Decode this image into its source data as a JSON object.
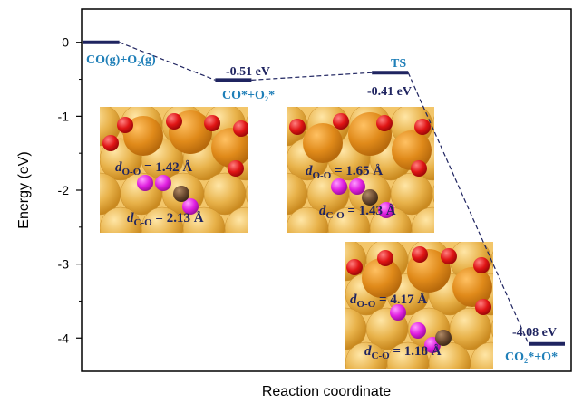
{
  "chart_data": {
    "type": "line",
    "title": "",
    "xlabel": "Reaction coordinate",
    "ylabel": "Energy (eV)",
    "ylim": [
      -4.45,
      0.45
    ],
    "yticks": [
      0,
      -1,
      -2,
      -3,
      -4
    ],
    "ytick_labels": [
      "0",
      "-1",
      "-2",
      "-3",
      "-4"
    ],
    "xlim": [
      0,
      10
    ],
    "grid": false,
    "series": [
      {
        "values": [
          0,
          -0.51,
          -0.41,
          -4.08
        ],
        "points": [
          {
            "x": 0.4,
            "y": 0,
            "state_label": "CO(g)+O₂(g)",
            "value_label": ""
          },
          {
            "x": 3.1,
            "y": -0.51,
            "state_label": "CO*+O₂*",
            "value_label": "-0.51 eV"
          },
          {
            "x": 6.3,
            "y": -0.41,
            "state_label": "TS",
            "value_label": "-0.41 eV"
          },
          {
            "x": 9.5,
            "y": -4.08,
            "state_label": "CO₂*+O*",
            "value_label": "-4.08 eV"
          }
        ]
      }
    ],
    "annotations": [
      {
        "text": "d",
        "sub": "O-O",
        "rest": " = 1.42 Å"
      },
      {
        "text": "d",
        "sub": "C-O",
        "rest": " = 2.13 Å"
      },
      {
        "text": "d",
        "sub": "O-O",
        "rest": " = 1.65 Å"
      },
      {
        "text": "d",
        "sub": "C-O",
        "rest": " = 1.43 Å"
      },
      {
        "text": "d",
        "sub": "O-O",
        "rest": " = 4.17 Å"
      },
      {
        "text": "d",
        "sub": "C-O",
        "rest": " = 1.18 Å"
      }
    ]
  },
  "colors": {
    "level": "#1f2460",
    "state_label": "#1f7fb8",
    "surface": "#e8b24a",
    "surface_dark": "#d58a1e",
    "oxygen": "#e01515",
    "adsorbate_o": "#e01fe0",
    "carbon": "#6b4a30"
  }
}
